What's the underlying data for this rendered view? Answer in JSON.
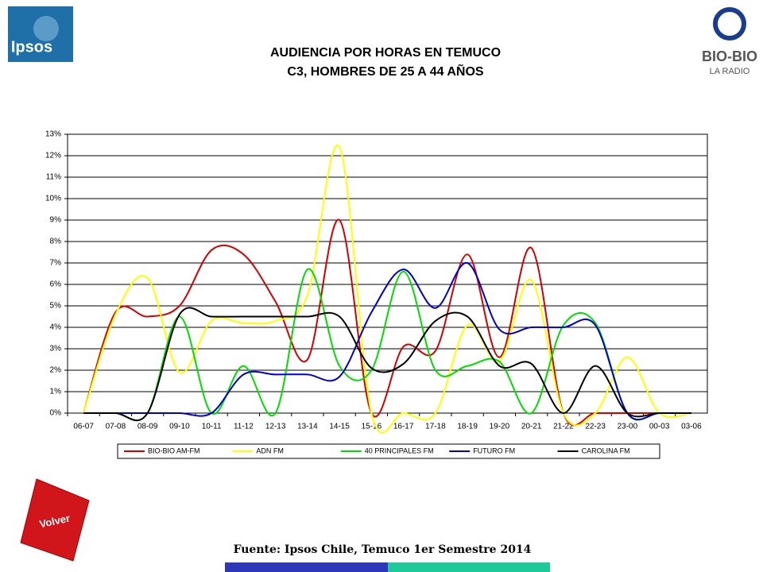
{
  "header": {
    "left_logo": "Ipsos",
    "right_logo": "BIO-BIO",
    "right_logo_sub": "LA RADIO"
  },
  "chart_data": {
    "type": "line",
    "smooth": true,
    "title": "AUDIENCIA POR HORAS EN TEMUCO",
    "subtitle": "C3, HOMBRES DE 25 A 44 AÑOS",
    "categories": [
      "06-07",
      "07-08",
      "08-09",
      "09-10",
      "10-11",
      "11-12",
      "12-13",
      "13-14",
      "14-15",
      "15-16",
      "16-17",
      "17-18",
      "18-19",
      "19-20",
      "20-21",
      "21-22",
      "22-23",
      "23-00",
      "00-03",
      "03-06"
    ],
    "series": [
      {
        "name": "BIO-BIO AM-FM",
        "color": "#d40000",
        "values": [
          0,
          4.7,
          4.5,
          5.0,
          7.6,
          7.4,
          5.2,
          2.5,
          9.0,
          0,
          3.1,
          2.9,
          7.4,
          2.6,
          7.7,
          0,
          0,
          0,
          0,
          0
        ]
      },
      {
        "name": "ADN FM",
        "color": "#ffff00",
        "values": [
          0,
          4.6,
          6.3,
          1.9,
          4.3,
          4.2,
          4.3,
          5.5,
          12.4,
          0,
          0,
          0,
          4.1,
          2.4,
          6.2,
          0,
          0,
          2.6,
          0,
          0
        ]
      },
      {
        "name": "40 PRINCIPALES FM",
        "color": "#00dd00",
        "values": [
          0,
          0,
          0,
          4.5,
          0,
          2.2,
          0,
          6.7,
          2.2,
          2.0,
          6.6,
          2.0,
          2.2,
          2.4,
          0,
          4.1,
          4.2,
          0,
          0,
          0
        ]
      },
      {
        "name": "FUTURO FM",
        "color": "#0000cc",
        "values": [
          0,
          0,
          0,
          0,
          0,
          1.8,
          1.8,
          1.8,
          1.7,
          4.7,
          6.7,
          4.9,
          7.0,
          3.9,
          4.0,
          4.0,
          4.1,
          0,
          0,
          0
        ]
      },
      {
        "name": "CAROLINA FM",
        "color": "#000000",
        "values": [
          0,
          0,
          0,
          4.6,
          4.5,
          4.5,
          4.5,
          4.5,
          4.5,
          2.1,
          2.3,
          4.3,
          4.5,
          2.2,
          2.3,
          0,
          2.2,
          0,
          0,
          0
        ]
      }
    ],
    "ylim": [
      0,
      13
    ],
    "yticks": [
      {
        "value": 0,
        "label": "0%"
      },
      {
        "value": 1,
        "label": "1%"
      },
      {
        "value": 2,
        "label": "2%"
      },
      {
        "value": 3,
        "label": "3%"
      },
      {
        "value": 4,
        "label": "4%"
      },
      {
        "value": 5,
        "label": "5%"
      },
      {
        "value": 6,
        "label": "6%"
      },
      {
        "value": 7,
        "label": "7%"
      },
      {
        "value": 8,
        "label": "8%"
      },
      {
        "value": 9,
        "label": "9%"
      },
      {
        "value": 10,
        "label": "10%"
      },
      {
        "value": 11,
        "label": "11%"
      },
      {
        "value": 12,
        "label": "12%"
      },
      {
        "value": 13,
        "label": "13%"
      }
    ],
    "grid": true,
    "legend": "bottom"
  },
  "footer": {
    "source": "Fuente: Ipsos Chile, Temuco 1er Semestre 2014",
    "button": "Volver"
  }
}
